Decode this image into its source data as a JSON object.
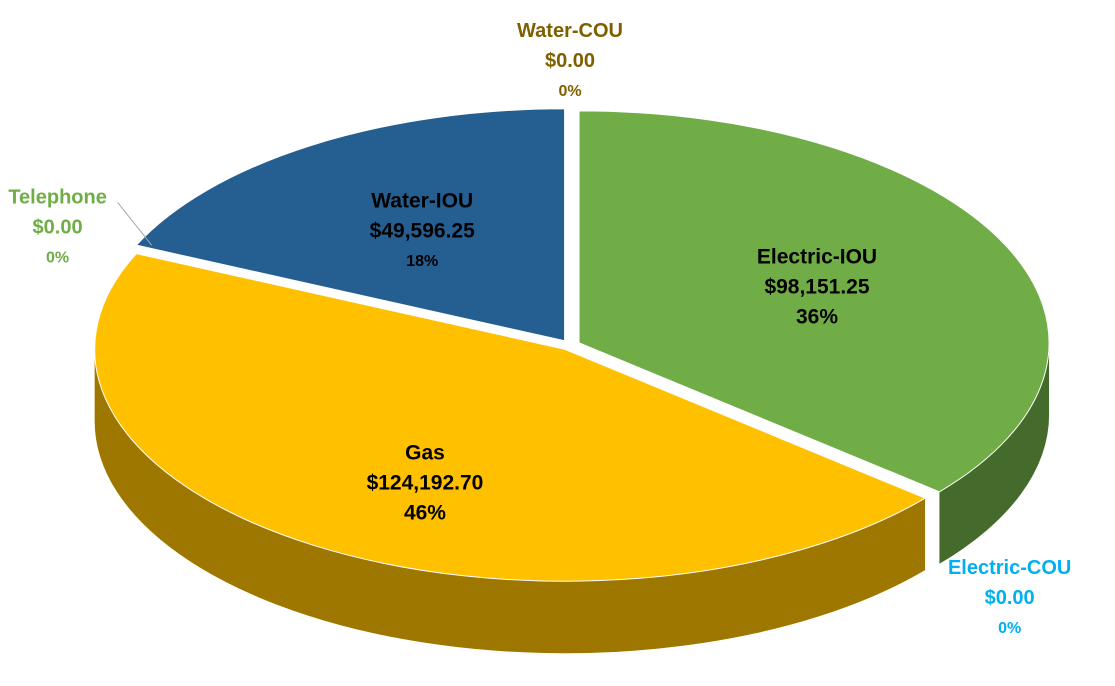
{
  "chart_data": {
    "type": "pie",
    "categories": [
      "Electric-IOU",
      "Electric-COU",
      "Gas",
      "Telephone",
      "Water-IOU",
      "Water-COU"
    ],
    "values": [
      98151.25,
      0,
      124192.7,
      0,
      49596.25,
      0
    ],
    "value_labels": [
      "$98,151.25",
      "$0.00",
      "$124,192.70",
      "$0.00",
      "$49,596.25",
      "$0.00"
    ],
    "percent_labels": [
      "36%",
      "0%",
      "46%",
      "0%",
      "18%",
      "0%"
    ],
    "colors": [
      "#70ad47",
      "#00b0f0",
      "#ffc000",
      "#70ad47",
      "#255e91",
      "#7f6000"
    ]
  }
}
